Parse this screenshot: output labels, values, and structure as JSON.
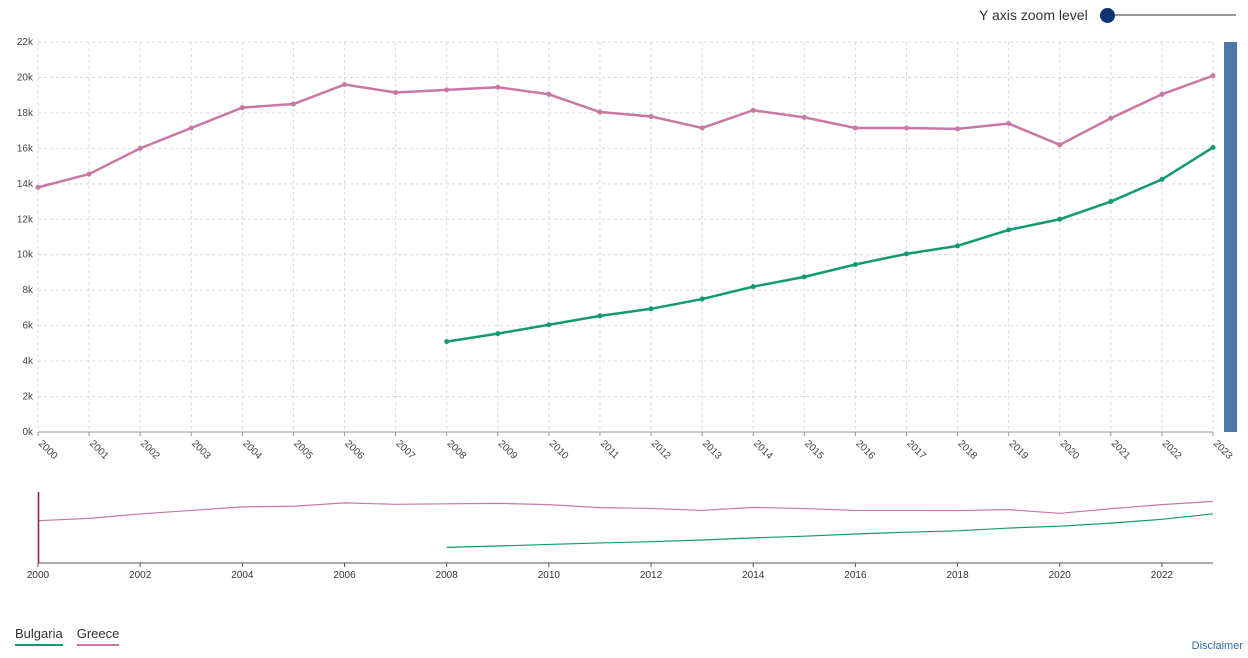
{
  "zoom": {
    "label": "Y axis zoom level",
    "value": 0
  },
  "legend": [
    {
      "label": "Bulgaria",
      "color": "#129a72"
    },
    {
      "label": "Greece",
      "color": "#c877a7"
    }
  ],
  "disclaimer": "Disclaimer",
  "scrollbar_color": "#4f78a8",
  "chart_data": {
    "type": "line",
    "x": [
      2000,
      2001,
      2002,
      2003,
      2004,
      2005,
      2006,
      2007,
      2008,
      2009,
      2010,
      2011,
      2012,
      2013,
      2014,
      2015,
      2016,
      2017,
      2018,
      2019,
      2020,
      2021,
      2022,
      2023
    ],
    "series": [
      {
        "name": "Bulgaria",
        "color": "#129a72",
        "values": [
          null,
          null,
          null,
          null,
          null,
          null,
          null,
          null,
          5100,
          5550,
          6050,
          6550,
          6950,
          7500,
          8200,
          8750,
          9450,
          10050,
          10500,
          11400,
          12000,
          13000,
          14250,
          16050
        ]
      },
      {
        "name": "Greece",
        "color": "#c877a7",
        "values": [
          13800,
          14550,
          16000,
          17150,
          18300,
          18500,
          19600,
          19150,
          19300,
          19450,
          19050,
          18050,
          17800,
          17150,
          18150,
          17750,
          17150,
          17150,
          17100,
          17400,
          16200,
          17700,
          19050,
          20100
        ]
      }
    ],
    "yticks": [
      "0k",
      "2k",
      "4k",
      "6k",
      "8k",
      "10k",
      "12k",
      "14k",
      "16k",
      "18k",
      "20k",
      "22k"
    ],
    "ylim": [
      0,
      22000
    ],
    "xlim": [
      2000,
      2023
    ],
    "grid": true,
    "legend_position": "bottom-left",
    "navigator": {
      "ticks": [
        "2000",
        "2002",
        "2004",
        "2006",
        "2008",
        "2010",
        "2012",
        "2014",
        "2016",
        "2018",
        "2020",
        "2022"
      ]
    }
  }
}
